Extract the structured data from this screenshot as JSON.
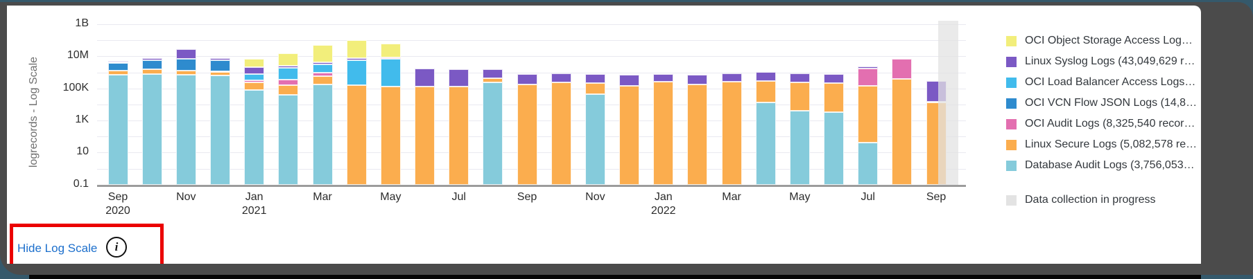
{
  "window": {
    "desktop_color": "#35596B",
    "frame_color": "#4B4B4B",
    "taskbar_color": "#060606",
    "card_color": "#FFFFFF"
  },
  "chart_data": {
    "type": "bar",
    "subtype": "stacked-log-scale",
    "title": "",
    "xlabel": "",
    "ylabel": "logrecords - Log Scale",
    "y_range": [
      0.1,
      1000000000
    ],
    "y_ticks": [
      {
        "label": "1B",
        "value": 1000000000
      },
      {
        "label": "10M",
        "value": 10000000
      },
      {
        "label": "100K",
        "value": 100000
      },
      {
        "label": "1K",
        "value": 1000
      },
      {
        "label": "10",
        "value": 10
      },
      {
        "label": "0.1",
        "value": 0.1
      }
    ],
    "grid": true,
    "legend_position": "right",
    "series": [
      {
        "id": "objstore",
        "label": "OCI Object Storage Access Log…",
        "color": "#F2EE7B"
      },
      {
        "id": "syslog",
        "label": "Linux Syslog Logs (43,049,629 r…",
        "color": "#7B59C4"
      },
      {
        "id": "lb",
        "label": "OCI Load Balancer Access Logs…",
        "color": "#41BBEC"
      },
      {
        "id": "vcn",
        "label": "OCI VCN Flow JSON Logs (14,8…",
        "color": "#2E8BCE"
      },
      {
        "id": "audit",
        "label": "OCI Audit Logs (8,325,540 recor…",
        "color": "#E36FB0"
      },
      {
        "id": "secure",
        "label": "Linux Secure Logs (5,082,578 re…",
        "color": "#FBAD4E"
      },
      {
        "id": "db",
        "label": "Database Audit Logs (3,756,053…",
        "color": "#85CBDB"
      }
    ],
    "legend_extra": {
      "label": "Data collection in progress",
      "color": "#E3E3E3"
    },
    "x_tick_labels": [
      {
        "index": 0,
        "line1": "Sep",
        "line2": "2020"
      },
      {
        "index": 2,
        "line1": "Nov",
        "line2": ""
      },
      {
        "index": 4,
        "line1": "Jan",
        "line2": "2021"
      },
      {
        "index": 6,
        "line1": "Mar",
        "line2": ""
      },
      {
        "index": 8,
        "line1": "May",
        "line2": ""
      },
      {
        "index": 10,
        "line1": "Jul",
        "line2": ""
      },
      {
        "index": 12,
        "line1": "Sep",
        "line2": ""
      },
      {
        "index": 14,
        "line1": "Nov",
        "line2": ""
      },
      {
        "index": 16,
        "line1": "Jan",
        "line2": "2022"
      },
      {
        "index": 18,
        "line1": "Mar",
        "line2": ""
      },
      {
        "index": 20,
        "line1": "May",
        "line2": ""
      },
      {
        "index": 22,
        "line1": "Jul",
        "line2": ""
      },
      {
        "index": 24,
        "line1": "Sep",
        "line2": ""
      }
    ],
    "months": [
      {
        "month": "Sep 2020",
        "segments": [
          [
            "db",
            730000
          ],
          [
            "secure",
            1300000
          ],
          [
            "vcn",
            4000000
          ],
          [
            "syslog",
            5300000
          ]
        ]
      },
      {
        "month": "Oct 2020",
        "segments": [
          [
            "db",
            800000
          ],
          [
            "secure",
            1500000
          ],
          [
            "vcn",
            5600000
          ],
          [
            "syslog",
            7800000
          ]
        ]
      },
      {
        "month": "Nov 2020",
        "segments": [
          [
            "db",
            730000
          ],
          [
            "secure",
            1250000
          ],
          [
            "vcn",
            7000000
          ],
          [
            "syslog",
            29000000
          ]
        ]
      },
      {
        "month": "Dec 2020",
        "segments": [
          [
            "db",
            620000
          ],
          [
            "secure",
            1100000
          ],
          [
            "vcn",
            5900000
          ],
          [
            "syslog",
            7800000
          ]
        ]
      },
      {
        "month": "Jan 2021",
        "segments": [
          [
            "db",
            80000
          ],
          [
            "secure",
            240000
          ],
          [
            "audit",
            320000
          ],
          [
            "lb",
            760000
          ],
          [
            "syslog",
            2200000
          ],
          [
            "objstore",
            6900000
          ]
        ]
      },
      {
        "month": "Feb 2021",
        "segments": [
          [
            "db",
            41000
          ],
          [
            "secure",
            160000
          ],
          [
            "audit",
            350000
          ],
          [
            "lb",
            1900000
          ],
          [
            "syslog",
            2600000
          ],
          [
            "objstore",
            15500000
          ]
        ]
      },
      {
        "month": "Mar 2021",
        "segments": [
          [
            "db",
            170000
          ],
          [
            "secure",
            600000
          ],
          [
            "audit",
            980000
          ],
          [
            "lb",
            3100000
          ],
          [
            "syslog",
            4300000
          ],
          [
            "objstore",
            50000000
          ]
        ]
      },
      {
        "month": "Apr 2021",
        "segments": [
          [
            "secure",
            160000
          ],
          [
            "lb",
            5900000
          ],
          [
            "syslog",
            7800000
          ],
          [
            "objstore",
            100000000
          ]
        ]
      },
      {
        "month": "May 2021",
        "segments": [
          [
            "secure",
            130000
          ],
          [
            "lb",
            7000000
          ],
          [
            "audit",
            8500000
          ],
          [
            "objstore",
            62000000
          ]
        ]
      },
      {
        "month": "Jun 2021",
        "segments": [
          [
            "secure",
            130000
          ],
          [
            "syslog",
            1700000
          ]
        ]
      },
      {
        "month": "Jul 2021",
        "segments": [
          [
            "secure",
            130000
          ],
          [
            "syslog",
            1500000
          ]
        ]
      },
      {
        "month": "Aug 2021",
        "segments": [
          [
            "db",
            230000
          ],
          [
            "secure",
            420000
          ],
          [
            "syslog",
            1550000
          ]
        ]
      },
      {
        "month": "Sep 2021",
        "segments": [
          [
            "secure",
            180000
          ],
          [
            "syslog",
            760000
          ]
        ]
      },
      {
        "month": "Oct 2021",
        "segments": [
          [
            "secure",
            235000
          ],
          [
            "syslog",
            870000
          ]
        ]
      },
      {
        "month": "Nov 2021",
        "segments": [
          [
            "db",
            44000
          ],
          [
            "secure",
            220000
          ],
          [
            "syslog",
            810000
          ]
        ]
      },
      {
        "month": "Dec 2021",
        "segments": [
          [
            "secure",
            140000
          ],
          [
            "syslog",
            700000
          ]
        ]
      },
      {
        "month": "Jan 2022",
        "segments": [
          [
            "secure",
            260000
          ],
          [
            "syslog",
            760000
          ]
        ]
      },
      {
        "month": "Feb 2022",
        "segments": [
          [
            "secure",
            180000
          ],
          [
            "syslog",
            730000
          ]
        ]
      },
      {
        "month": "Mar 2022",
        "segments": [
          [
            "secure",
            260000
          ],
          [
            "syslog",
            870000
          ]
        ]
      },
      {
        "month": "Apr 2022",
        "segments": [
          [
            "db",
            14000
          ],
          [
            "secure",
            290000
          ],
          [
            "syslog",
            1050000
          ]
        ]
      },
      {
        "month": "May 2022",
        "segments": [
          [
            "db",
            4000
          ],
          [
            "secure",
            240000
          ],
          [
            "syslog",
            870000
          ]
        ]
      },
      {
        "month": "Jun 2022",
        "segments": [
          [
            "db",
            3400
          ],
          [
            "secure",
            220000
          ],
          [
            "syslog",
            760000
          ]
        ]
      },
      {
        "month": "Jul 2022",
        "segments": [
          [
            "db",
            42
          ],
          [
            "secure",
            140000
          ],
          [
            "audit",
            1700000
          ],
          [
            "syslog",
            2300000
          ]
        ]
      },
      {
        "month": "Aug 2022",
        "segments": [
          [
            "secure",
            390000
          ],
          [
            "audit",
            7000000
          ]
        ]
      },
      {
        "month": "Sep 2022",
        "segments": [
          [
            "secure",
            14000
          ],
          [
            "syslog",
            300000
          ]
        ]
      }
    ],
    "data_collection_band": {
      "month": "Sep 2022",
      "color": "#E3E3E3"
    }
  },
  "footer": {
    "hide_log_scale_label": "Hide Log Scale",
    "info_icon_glyph": "i"
  },
  "annotation": {
    "highlight_border_color": "#EB0000"
  }
}
